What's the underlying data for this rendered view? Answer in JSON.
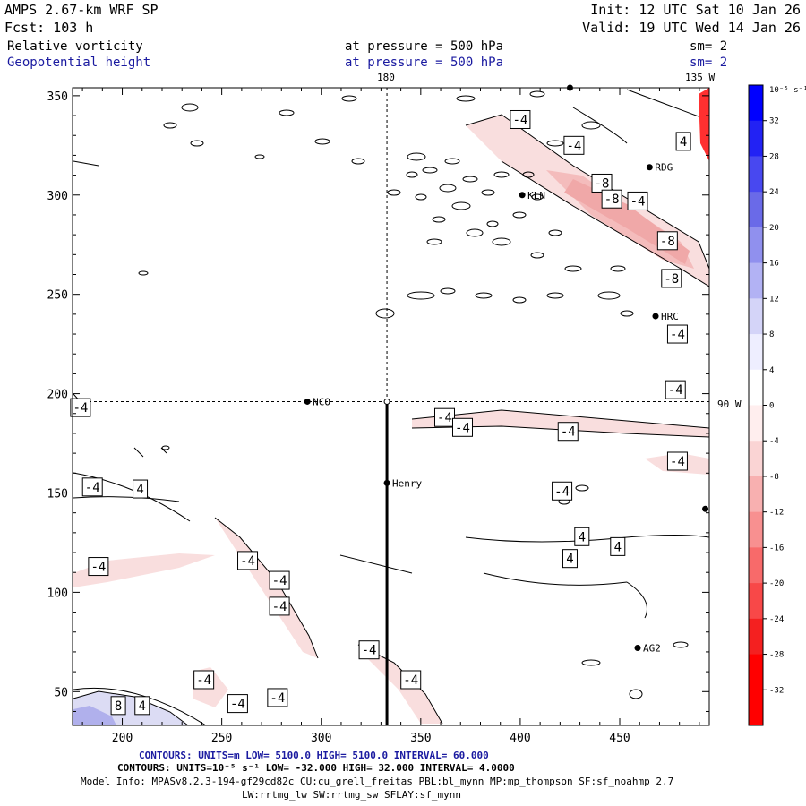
{
  "header": {
    "title": "AMPS 2.67-km WRF SP",
    "forecast": "Fcst: 103 h",
    "init": "Init: 12 UTC Sat 10 Jan 26",
    "valid": "Valid: 19 UTC Wed 14 Jan 26",
    "field1_name": "Relative vorticity",
    "field1_level": "at pressure = 500 hPa",
    "field1_smooth": "sm= 2",
    "field2_name": "Geopotential height",
    "field2_level": "at pressure = 500 hPa",
    "field2_smooth": "sm= 2"
  },
  "grid_labels": {
    "top_lon": "180",
    "top_right_lon": "135 W",
    "right_lat": "90 W"
  },
  "stations": [
    {
      "name": "RDG",
      "x": 465,
      "y": 314
    },
    {
      "name": "KLN",
      "x": 401,
      "y": 300
    },
    {
      "name": "HRC",
      "x": 468,
      "y": 239
    },
    {
      "name": "NCO",
      "x": 293,
      "y": 196
    },
    {
      "name": "Henry",
      "x": 333,
      "y": 155
    },
    {
      "name": "AG2",
      "x": 459,
      "y": 72
    },
    {
      "name": "",
      "x": 425,
      "y": 354
    },
    {
      "name": "",
      "x": 493,
      "y": 142
    }
  ],
  "footer": {
    "line1": "CONTOURS: UNITS=m LOW= 5100.0 HIGH= 5100.0 INTERVAL= 60.000",
    "line2": "CONTOURS: UNITS=10⁻⁵ s⁻¹ LOW= -32.000 HIGH= 32.000 INTERVAL= 4.0000",
    "line3": "Model Info: MPASv8.2.3-194-gf29cd82c CU:cu_grell_freitas PBL:bl_mynn MP:mp_thompson SF:sf_noahmp 2.7",
    "line4": "LW:rrtmg_lw SW:rrtmg_sw SFLAY:sf_mynn"
  },
  "colorbar": {
    "unit_label": "10⁻⁵ s⁻¹",
    "levels": [
      36,
      32,
      28,
      24,
      20,
      16,
      12,
      8,
      4,
      0,
      -4,
      -8,
      -12,
      -16,
      -20,
      -24,
      -28,
      -32,
      -36
    ],
    "tick_labels": [
      "32",
      "28",
      "24",
      "20",
      "16",
      "12",
      "8",
      "4",
      "0",
      "-4",
      "-8",
      "-12",
      "-16",
      "-20",
      "-24",
      "-28",
      "-32"
    ],
    "colors": [
      "#0000ff",
      "#2222f4",
      "#4848f0",
      "#6a6ae8",
      "#9090ee",
      "#b2b2f4",
      "#d4d4f8",
      "#eeeeff",
      "#ffffff",
      "#ffeeee",
      "#fad4d4",
      "#f8b0b0",
      "#f89090",
      "#f86a6a",
      "#f84848",
      "#f42020",
      "#ff0000",
      "#ff0000"
    ]
  },
  "chart_data": {
    "type": "contour",
    "xlim": [
      175,
      495
    ],
    "ylim": [
      33,
      354
    ],
    "x_ticks": [
      200,
      250,
      300,
      350,
      400,
      450
    ],
    "y_ticks": [
      50,
      100,
      150,
      200,
      250,
      300,
      350
    ],
    "tick_labels_x": [
      "200",
      "250",
      "300",
      "350",
      "400",
      "450"
    ],
    "tick_labels_y": [
      "50",
      "100",
      "150",
      "200",
      "250",
      "300",
      "350"
    ],
    "crosshair": {
      "x": 333,
      "y": 196
    },
    "cross_section_line": {
      "x": 333,
      "y_from": 33,
      "y_to": 196
    },
    "contour_labels": [
      {
        "text": "-4",
        "x": 400,
        "y": 338
      },
      {
        "text": "-4",
        "x": 427,
        "y": 325
      },
      {
        "text": "-8",
        "x": 441,
        "y": 306
      },
      {
        "text": "-8",
        "x": 446,
        "y": 298
      },
      {
        "text": "-4",
        "x": 459,
        "y": 297
      },
      {
        "text": "-8",
        "x": 474,
        "y": 277
      },
      {
        "text": "-8",
        "x": 476,
        "y": 258
      },
      {
        "text": "-4",
        "x": 479,
        "y": 230
      },
      {
        "text": "-4",
        "x": 478,
        "y": 202
      },
      {
        "text": "-4",
        "x": 362,
        "y": 188
      },
      {
        "text": "-4",
        "x": 371,
        "y": 183
      },
      {
        "text": "-4",
        "x": 424,
        "y": 181
      },
      {
        "text": "-4",
        "x": 479,
        "y": 166
      },
      {
        "text": "-4",
        "x": 421,
        "y": 151
      },
      {
        "text": "4",
        "x": 431,
        "y": 128
      },
      {
        "text": "4",
        "x": 449,
        "y": 123
      },
      {
        "text": "4",
        "x": 425,
        "y": 117
      },
      {
        "text": "4",
        "x": 482,
        "y": 327
      },
      {
        "text": "-4",
        "x": 179,
        "y": 193
      },
      {
        "text": "-4",
        "x": 185,
        "y": 153
      },
      {
        "text": "4",
        "x": 209,
        "y": 152
      },
      {
        "text": "-4",
        "x": 188,
        "y": 113
      },
      {
        "text": "-4",
        "x": 263,
        "y": 116
      },
      {
        "text": "-4",
        "x": 279,
        "y": 106
      },
      {
        "text": "-4",
        "x": 279,
        "y": 93
      },
      {
        "text": "-4",
        "x": 324,
        "y": 71
      },
      {
        "text": "-4",
        "x": 345,
        "y": 56
      },
      {
        "text": "-4",
        "x": 241,
        "y": 56
      },
      {
        "text": "-4",
        "x": 258,
        "y": 44
      },
      {
        "text": "-4",
        "x": 278,
        "y": 47
      },
      {
        "text": "8",
        "x": 198,
        "y": 43
      },
      {
        "text": "4",
        "x": 210,
        "y": 43
      }
    ]
  }
}
